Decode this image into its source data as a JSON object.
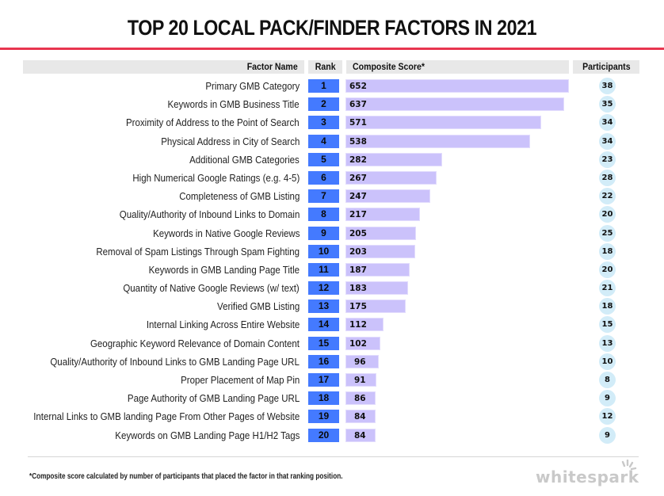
{
  "title": "TOP 20 LOCAL PACK/FINDER FACTORS IN 2021",
  "header": {
    "factor_name": "Factor Name",
    "rank": "Rank",
    "composite_score": "Composite Score*",
    "participants": "Participants"
  },
  "rows": [
    {
      "factor": "Primary GMB Category",
      "rank": "1",
      "score": "652",
      "participants": "38"
    },
    {
      "factor": "Keywords in GMB Business Title",
      "rank": "2",
      "score": "637",
      "participants": "35"
    },
    {
      "factor": "Proximity of Address to the Point of Search",
      "rank": "3",
      "score": "571",
      "participants": "34"
    },
    {
      "factor": "Physical Address in City of Search",
      "rank": "4",
      "score": "538",
      "participants": "34"
    },
    {
      "factor": "Additional GMB Categories",
      "rank": "5",
      "score": "282",
      "participants": "23"
    },
    {
      "factor": "High Numerical Google Ratings (e.g. 4-5)",
      "rank": "6",
      "score": "267",
      "participants": "28"
    },
    {
      "factor": "Completeness of GMB Listing",
      "rank": "7",
      "score": "247",
      "participants": "22"
    },
    {
      "factor": "Quality/Authority of Inbound Links to Domain",
      "rank": "8",
      "score": "217",
      "participants": "20"
    },
    {
      "factor": "Keywords in Native Google Reviews",
      "rank": "9",
      "score": "205",
      "participants": "25"
    },
    {
      "factor": "Removal of Spam Listings Through Spam Fighting",
      "rank": "10",
      "score": "203",
      "participants": "18"
    },
    {
      "factor": "Keywords in GMB Landing Page Title",
      "rank": "11",
      "score": "187",
      "participants": "20"
    },
    {
      "factor": "Quantity of Native Google Reviews (w/ text)",
      "rank": "12",
      "score": "183",
      "participants": "21"
    },
    {
      "factor": "Verified GMB Listing",
      "rank": "13",
      "score": "175",
      "participants": "18"
    },
    {
      "factor": "Internal Linking Across Entire Website",
      "rank": "14",
      "score": "112",
      "participants": "15"
    },
    {
      "factor": "Geographic Keyword Relevance of Domain Content",
      "rank": "15",
      "score": "102",
      "participants": "13"
    },
    {
      "factor": "Quality/Authority of Inbound Links to GMB Landing Page URL",
      "rank": "16",
      "score": "96",
      "participants": "10"
    },
    {
      "factor": "Proper Placement of Map Pin",
      "rank": "17",
      "score": "91",
      "participants": "8"
    },
    {
      "factor": "Page Authority of GMB Landing Page URL",
      "rank": "18",
      "score": "86",
      "participants": "9"
    },
    {
      "factor": "Internal Links to GMB landing Page From Other Pages of Website",
      "rank": "19",
      "score": "84",
      "participants": "12"
    },
    {
      "factor": "Keywords on GMB Landing Page H1/H2 Tags",
      "rank": "20",
      "score": "84",
      "participants": "9"
    }
  ],
  "footnote": "*Composite score calculated by number of participants that placed the factor in that ranking position.",
  "brand": "whitespark",
  "colors": {
    "accent_rule": "#e8354f",
    "rank_box": "#447aff",
    "score_bar": "#cbc2fb",
    "participant_circle": "#d2ecf8",
    "header_bg": "#e8e8e8"
  },
  "chart_data": {
    "type": "bar",
    "orientation": "horizontal",
    "title": "TOP 20 LOCAL PACK/FINDER FACTORS IN 2021",
    "xlabel": "Composite Score*",
    "ylabel": "Factor Name",
    "categories": [
      "Primary GMB Category",
      "Keywords in GMB Business Title",
      "Proximity of Address to the Point of Search",
      "Physical Address in City of Search",
      "Additional GMB Categories",
      "High Numerical Google Ratings (e.g. 4-5)",
      "Completeness of GMB Listing",
      "Quality/Authority of Inbound Links to Domain",
      "Keywords in Native Google Reviews",
      "Removal of Spam Listings Through Spam Fighting",
      "Keywords in GMB Landing Page Title",
      "Quantity of Native Google Reviews (w/ text)",
      "Verified GMB Listing",
      "Internal Linking Across Entire Website",
      "Geographic Keyword Relevance of Domain Content",
      "Quality/Authority of Inbound Links to GMB Landing Page URL",
      "Proper Placement of Map Pin",
      "Page Authority of GMB Landing Page URL",
      "Internal Links to GMB landing Page From Other Pages of Website",
      "Keywords on GMB Landing Page H1/H2 Tags"
    ],
    "series": [
      {
        "name": "Rank",
        "values": [
          1,
          2,
          3,
          4,
          5,
          6,
          7,
          8,
          9,
          10,
          11,
          12,
          13,
          14,
          15,
          16,
          17,
          18,
          19,
          20
        ]
      },
      {
        "name": "Composite Score*",
        "values": [
          652,
          637,
          571,
          538,
          282,
          267,
          247,
          217,
          205,
          203,
          187,
          183,
          175,
          112,
          102,
          96,
          91,
          86,
          84,
          84
        ]
      },
      {
        "name": "Participants",
        "values": [
          38,
          35,
          34,
          34,
          23,
          28,
          22,
          20,
          25,
          18,
          20,
          21,
          18,
          15,
          13,
          10,
          8,
          9,
          12,
          9
        ]
      }
    ],
    "xlim": [
      0,
      652
    ],
    "grid": false,
    "legend": "none",
    "annotations": [
      "*Composite score calculated by number of participants that placed the factor in that ranking position."
    ]
  }
}
